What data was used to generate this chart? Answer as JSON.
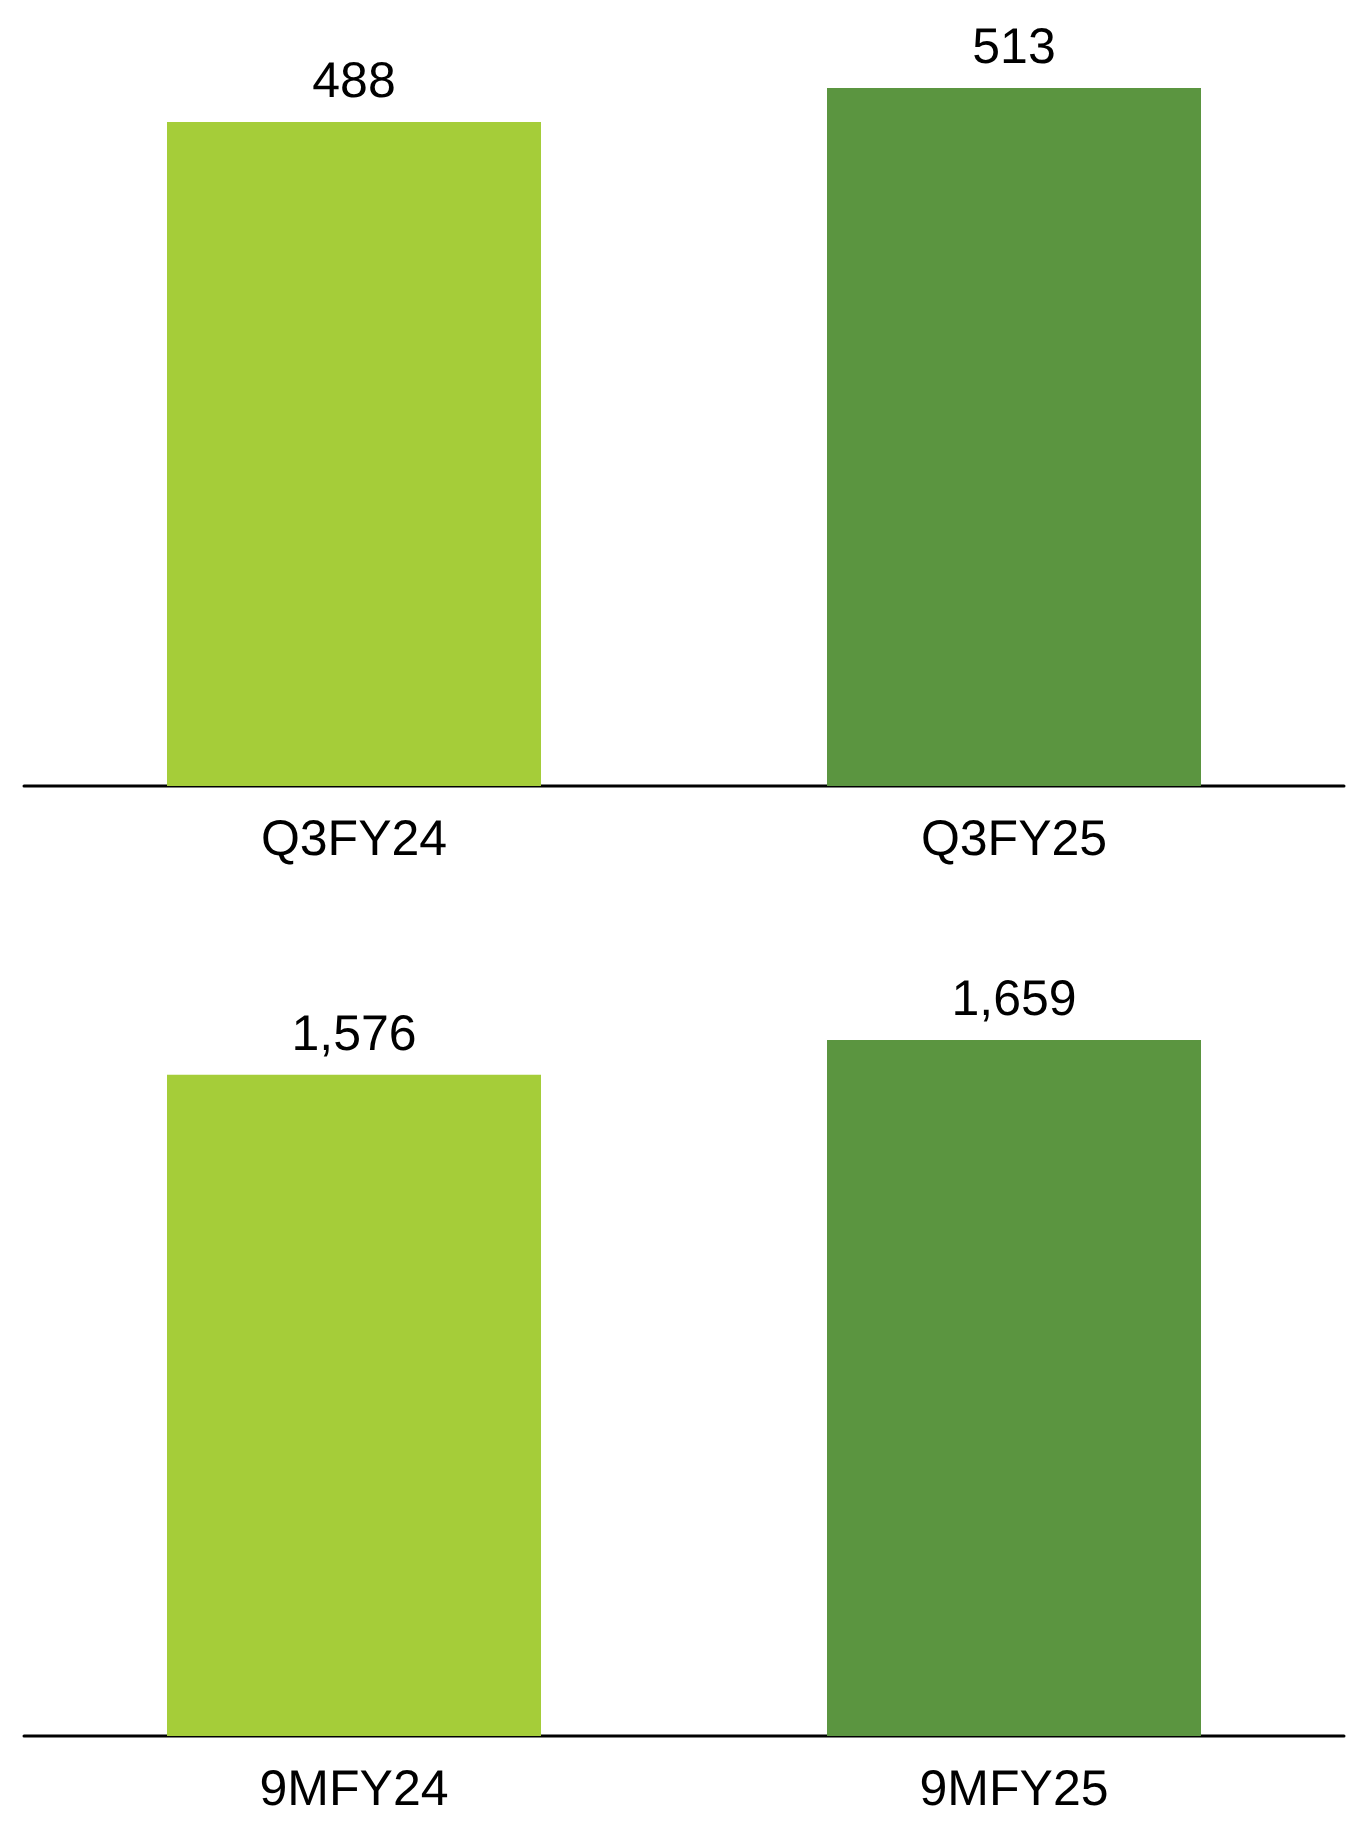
{
  "chart_data": [
    {
      "type": "bar",
      "categories": [
        "Q3FY24",
        "Q3FY25"
      ],
      "values": [
        488,
        513
      ],
      "colors": [
        "#a5cd39",
        "#5b9540"
      ],
      "value_labels": [
        "488",
        "513"
      ],
      "tick_labels": "x"
    },
    {
      "type": "bar",
      "categories": [
        "9MFY24",
        "9MFY25"
      ],
      "values": [
        1576,
        1659
      ],
      "colors": [
        "#a5cd39",
        "#5b9540"
      ],
      "value_labels": [
        "1,576",
        "1,659"
      ],
      "tick_labels": "x"
    }
  ]
}
